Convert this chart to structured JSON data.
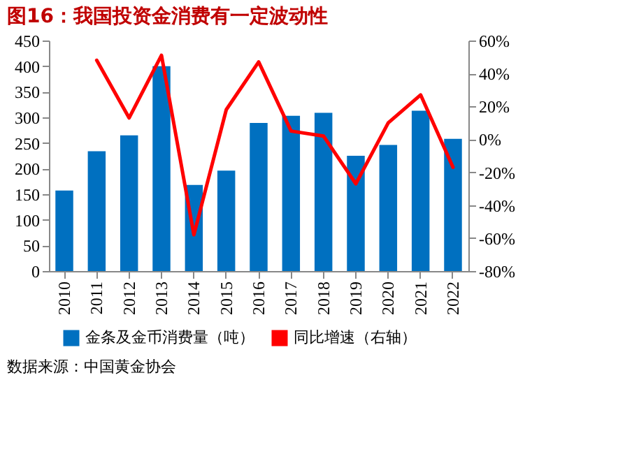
{
  "chart_data": {
    "type": "bar",
    "title": "图16：我国投资金消费有一定波动性",
    "categories": [
      "2010",
      "2011",
      "2012",
      "2013",
      "2014",
      "2015",
      "2016",
      "2017",
      "2018",
      "2019",
      "2020",
      "2021",
      "2022"
    ],
    "series": [
      {
        "name": "金条及金币消费量（吨）",
        "color": "#0070c0",
        "values": [
          157,
          234,
          265,
          400,
          168,
          196,
          289,
          303,
          309,
          225,
          246,
          313,
          258
        ]
      },
      {
        "name": "同比增速（右轴）",
        "type": "line",
        "line_style": "solid",
        "axis": "y2",
        "color": "#ff0000",
        "values": [
          null,
          48,
          13,
          51,
          -58,
          18,
          47,
          5,
          2,
          -27,
          10,
          27,
          -17
        ]
      }
    ],
    "ylim": [
      0,
      450
    ],
    "yticks": [
      0,
      50,
      100,
      150,
      200,
      250,
      300,
      350,
      400,
      450
    ],
    "y2lim": [
      -80,
      60
    ],
    "y2ticks": [
      {
        "value": -80,
        "label": "-80%"
      },
      {
        "value": -60,
        "label": "-60%"
      },
      {
        "value": -40,
        "label": "-40%"
      },
      {
        "value": -20,
        "label": "-20%"
      },
      {
        "value": 0,
        "label": "0%"
      },
      {
        "value": 20,
        "label": "20%"
      },
      {
        "value": 40,
        "label": "40%"
      },
      {
        "value": 60,
        "label": "60%"
      }
    ],
    "grid": false,
    "legend": "bottom",
    "marker": "none",
    "annotations": [
      "数据来源：中国黄金协会"
    ]
  }
}
